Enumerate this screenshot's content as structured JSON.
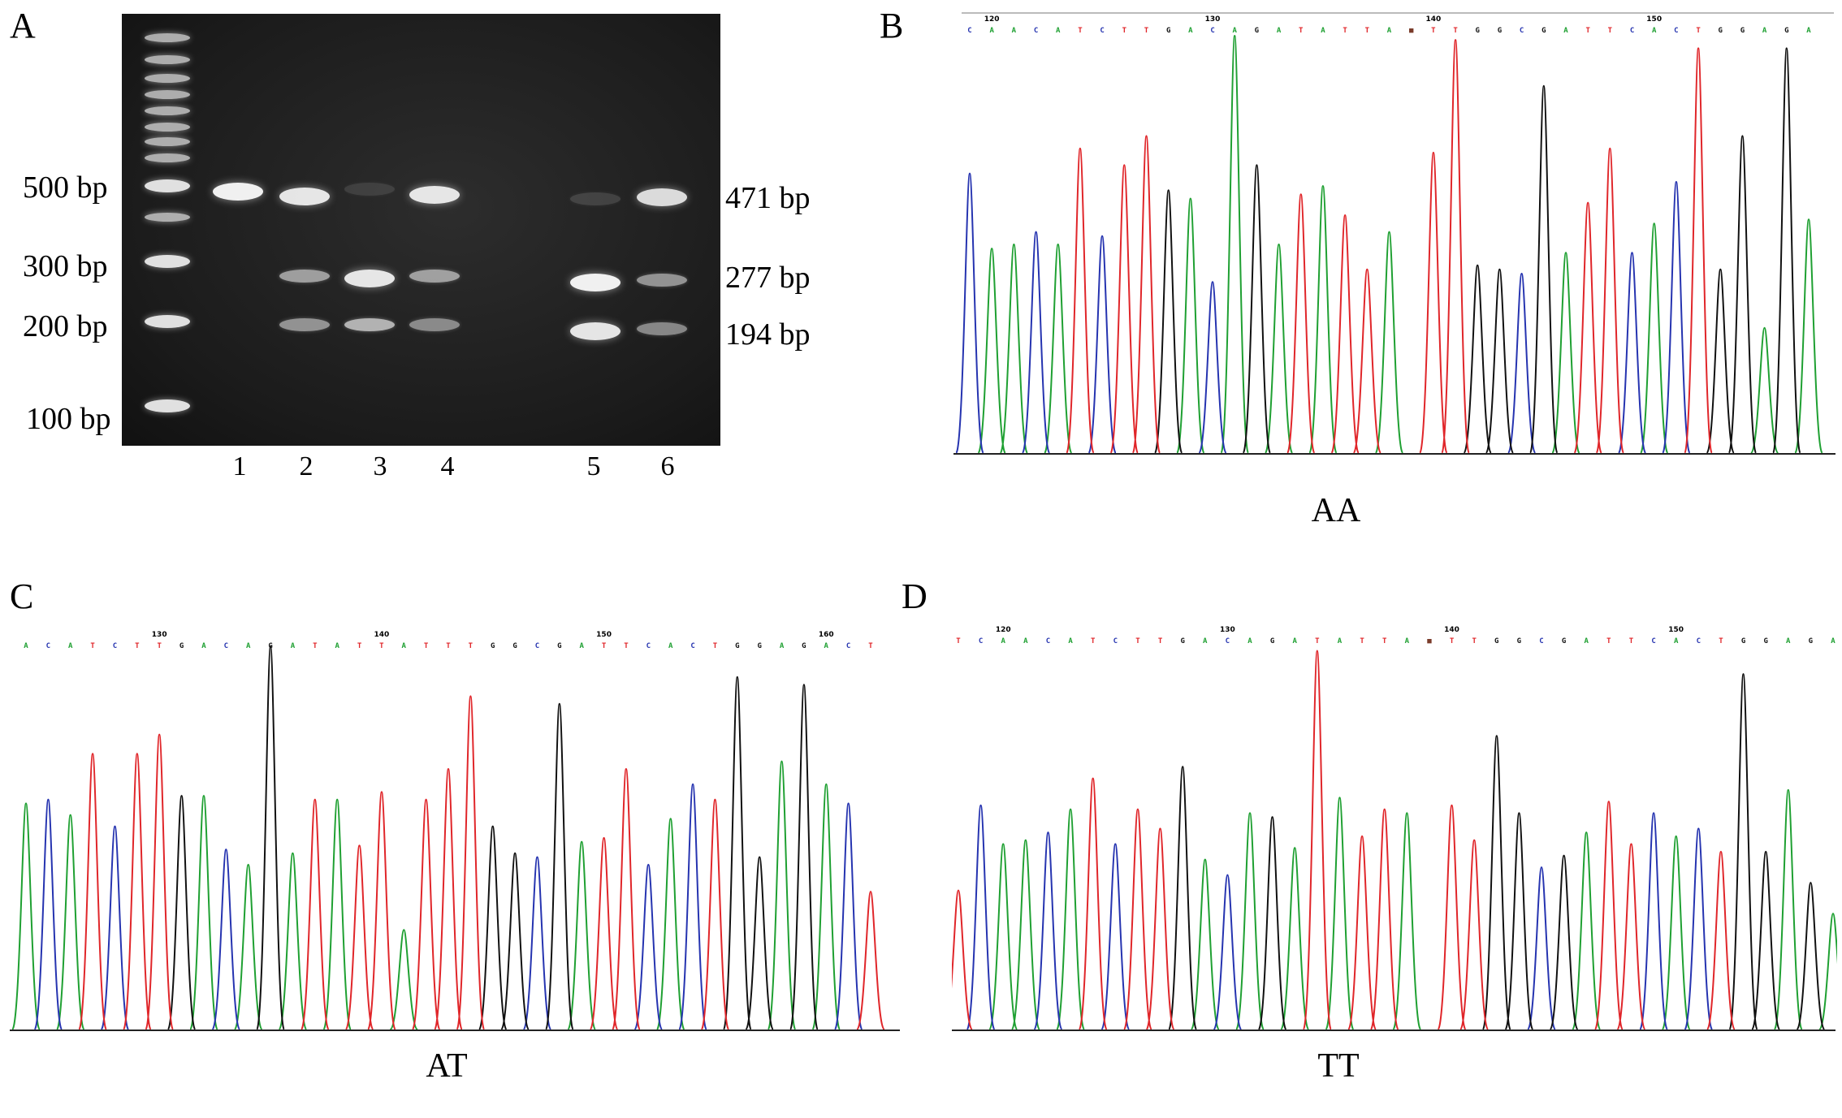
{
  "panels": {
    "a": {
      "letter": "A"
    },
    "b": {
      "letter": "B"
    },
    "c": {
      "letter": "C"
    },
    "d": {
      "letter": "D"
    }
  },
  "gel": {
    "ladder_labels": [
      "500 bp",
      "300 bp",
      "200 bp",
      "100 bp"
    ],
    "product_labels": [
      "471 bp",
      "277 bp",
      "194 bp"
    ],
    "lanes": [
      "1",
      "2",
      "3",
      "4",
      "5",
      "6"
    ]
  },
  "traces": {
    "b": {
      "genotype": "AA",
      "positions": [
        "120",
        "130",
        "140",
        "150"
      ],
      "sequence": "CAACATCTTGACAGATATTANTTGGCGATTCACTGGAGA"
    },
    "c": {
      "genotype": "AT",
      "positions": [
        "130",
        "140",
        "150",
        "160"
      ],
      "sequence": "ACATCTTGACAGATATTATTTGGCGATTCACTGGAGACT"
    },
    "d": {
      "genotype": "TT",
      "positions": [
        "120",
        "130",
        "140",
        "150"
      ],
      "sequence": "TCAACATCTTGACAGATATTANTTGGCGATTCACTGGAGA"
    }
  },
  "colors": {
    "A": "#1fa032",
    "C": "#2634b0",
    "G": "#111111",
    "T": "#e0262a",
    "N": "#7a3b2a"
  }
}
